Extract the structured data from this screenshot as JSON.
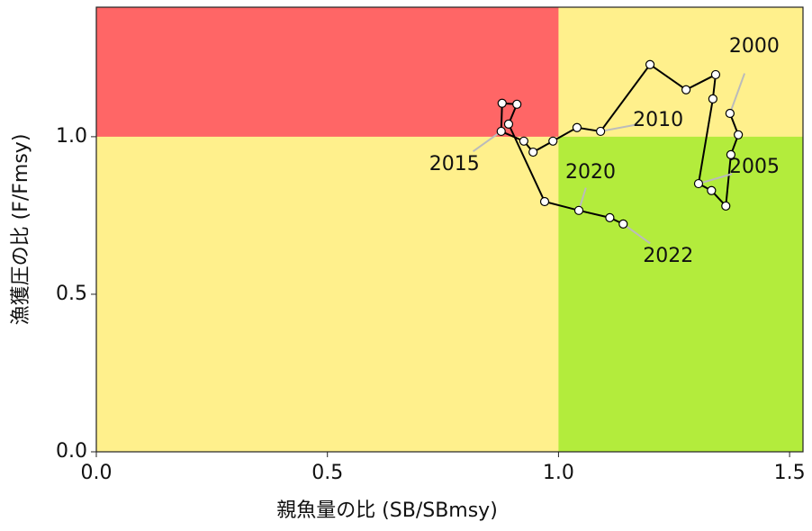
{
  "chart_data": {
    "type": "scatter",
    "connected": true,
    "x_label": "親魚量の比 (SB/SBmsy)",
    "y_label": "漁獲圧の比 (F/Fmsy)",
    "xlim": [
      0,
      1.529
    ],
    "ylim": [
      0,
      1.411
    ],
    "xticks": [
      {
        "value": 0,
        "label": "0.0"
      },
      {
        "value": 0.5,
        "label": "0.5"
      },
      {
        "value": 1,
        "label": "1.0"
      },
      {
        "value": 1.5,
        "label": "1.5"
      }
    ],
    "yticks": [
      {
        "value": 0,
        "label": "0.0"
      },
      {
        "value": 0.5,
        "label": "0.5"
      },
      {
        "value": 1,
        "label": "1.0"
      }
    ],
    "xref": 1,
    "yref": 1,
    "zone_colors": {
      "low_x_high_y": "#ff6666",
      "high_x_low_y": "#b3ec3c",
      "other": "#fff08c"
    },
    "line_color": "#000000",
    "marker_color": "#ffffff",
    "x": [
      1.371,
      1.389,
      1.373,
      1.362,
      1.331,
      1.303,
      1.334,
      1.34,
      1.276,
      1.198,
      1.091,
      1.04,
      0.988,
      0.945,
      0.925,
      0.876,
      0.878,
      0.91,
      0.892,
      0.97,
      1.044,
      1.111,
      1.14
    ],
    "values": [
      1.074,
      1.006,
      0.943,
      0.78,
      0.829,
      0.851,
      1.12,
      1.197,
      1.149,
      1.229,
      1.017,
      1.029,
      0.986,
      0.951,
      0.986,
      1.017,
      1.106,
      1.103,
      1.04,
      0.794,
      0.766,
      0.743,
      0.723
    ],
    "point_labels": [
      "2000",
      null,
      null,
      null,
      null,
      "2005",
      null,
      null,
      null,
      null,
      "2010",
      null,
      null,
      null,
      null,
      "2015",
      null,
      null,
      null,
      null,
      "2020",
      null,
      "2022"
    ]
  }
}
